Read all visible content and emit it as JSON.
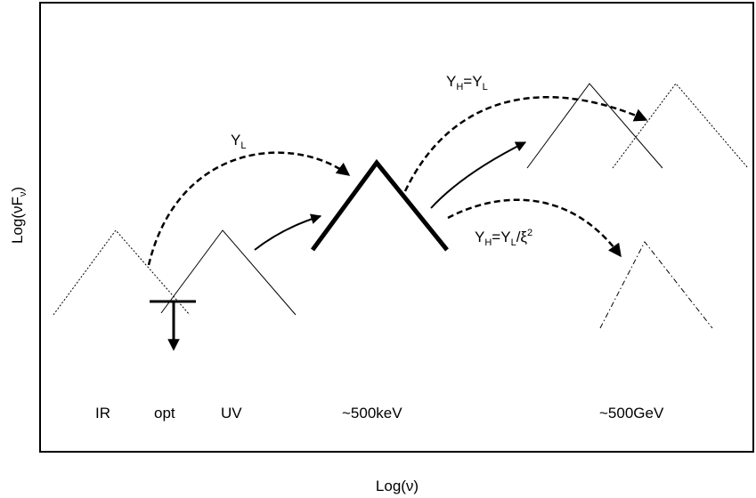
{
  "axes": {
    "x_label": "Log(ν)",
    "y_label": {
      "main": "Log(νF",
      "sub": "ν",
      "close": ")"
    }
  },
  "band_labels": {
    "ir": "IR",
    "opt": "opt",
    "uv": "UV",
    "kev": "~500keV",
    "gev": "~500GeV"
  },
  "annotations": {
    "yl": {
      "main": "Y",
      "sub": "L"
    },
    "yh_eq_yl": {
      "y1": "Y",
      "s1": "H",
      "eq": "=Y",
      "s2": "L"
    },
    "yh_xi": {
      "y1": "Y",
      "s1": "H",
      "eq": "=Y",
      "s2": "L",
      "tail": "/ξ",
      "sup": "2"
    }
  },
  "styles": {
    "ink": "#000000",
    "background": "#ffffff"
  }
}
